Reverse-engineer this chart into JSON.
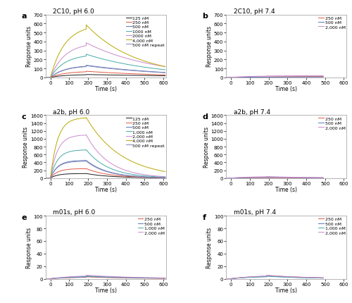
{
  "panels": [
    {
      "label": "a",
      "title": "2C10, pH 6.0",
      "ylim": [
        0,
        700
      ],
      "yticks": [
        0,
        100,
        200,
        300,
        400,
        500,
        600,
        700
      ],
      "xlim": [
        -25,
        615
      ],
      "xticks": [
        0,
        100,
        200,
        300,
        400,
        500,
        600
      ],
      "assoc_start": 0,
      "assoc_end": 190,
      "dissoc_end": 610,
      "k_on": 2.5,
      "series": [
        {
          "label": "125 nM",
          "color": "#1a1a1a",
          "peak": 32,
          "end": 18
        },
        {
          "label": "250 nM",
          "color": "#e05840",
          "peak": 68,
          "end": 28
        },
        {
          "label": "500 nM",
          "color": "#5577bb",
          "peak": 135,
          "end": 55
        },
        {
          "label": "1000 nM",
          "color": "#44aaa8",
          "peak": 258,
          "end": 85
        },
        {
          "label": "2000 nM",
          "color": "#cc88cc",
          "peak": 385,
          "end": 120
        },
        {
          "label": "4,000 nM",
          "color": "#b8a800",
          "peak": 585,
          "end": 120
        },
        {
          "label": "500 nM repeat",
          "color": "#8888bb",
          "peak": 130,
          "end": 52
        }
      ]
    },
    {
      "label": "b",
      "title": "2C10, pH 7.4",
      "ylim": [
        0,
        700
      ],
      "yticks": [
        0,
        100,
        200,
        300,
        400,
        500,
        600,
        700
      ],
      "xlim": [
        -25,
        615
      ],
      "xticks": [
        0,
        100,
        200,
        300,
        400,
        500,
        600
      ],
      "assoc_start": 0,
      "assoc_end": 190,
      "dissoc_end": 490,
      "k_on": 2.0,
      "series": [
        {
          "label": "250 nM",
          "color": "#e05840",
          "peak": 6,
          "end": 10
        },
        {
          "label": "500 nM",
          "color": "#5577bb",
          "peak": 4,
          "end": 5
        },
        {
          "label": "2,000 nM",
          "color": "#cc88cc",
          "peak": 16,
          "end": 20
        }
      ]
    },
    {
      "label": "c",
      "title": "a2b, pH 6.0",
      "ylim": [
        0,
        1600
      ],
      "yticks": [
        0,
        200,
        400,
        600,
        800,
        1000,
        1200,
        1400,
        1600
      ],
      "xlim": [
        -25,
        615
      ],
      "xticks": [
        0,
        100,
        200,
        300,
        400,
        500,
        600
      ],
      "assoc_start": 0,
      "assoc_end": 190,
      "dissoc_end": 610,
      "k_on": 5.0,
      "series": [
        {
          "label": "125 nM",
          "color": "#1a1a1a",
          "peak": 115,
          "end": 5
        },
        {
          "label": "250 nM",
          "color": "#e05840",
          "peak": 240,
          "end": 8
        },
        {
          "label": "500 nM",
          "color": "#5577bb",
          "peak": 450,
          "end": 12
        },
        {
          "label": "1,000 nM",
          "color": "#44aaa8",
          "peak": 720,
          "end": 22
        },
        {
          "label": "2,000 nM",
          "color": "#cc88cc",
          "peak": 1100,
          "end": 35
        },
        {
          "label": "4,000 nM",
          "color": "#b8a800",
          "peak": 1540,
          "end": 165
        },
        {
          "label": "500 nM repeat",
          "color": "#8888bb",
          "peak": 430,
          "end": 10
        }
      ]
    },
    {
      "label": "d",
      "title": "a2b, pH 7.4",
      "ylim": [
        0,
        1600
      ],
      "yticks": [
        0,
        200,
        400,
        600,
        800,
        1000,
        1200,
        1400,
        1600
      ],
      "xlim": [
        -25,
        615
      ],
      "xticks": [
        0,
        100,
        200,
        300,
        400,
        500,
        600
      ],
      "assoc_start": 0,
      "assoc_end": 190,
      "dissoc_end": 490,
      "k_on": 2.0,
      "series": [
        {
          "label": "250 nM",
          "color": "#e05840",
          "peak": 10,
          "end": 5
        },
        {
          "label": "500 nM",
          "color": "#5577bb",
          "peak": 18,
          "end": 7
        },
        {
          "label": "2,000 nM",
          "color": "#cc88cc",
          "peak": 38,
          "end": 10
        }
      ]
    },
    {
      "label": "e",
      "title": "m01s, pH 6.0",
      "ylim": [
        0,
        100
      ],
      "yticks": [
        0,
        20,
        40,
        60,
        80,
        100
      ],
      "xlim": [
        -25,
        615
      ],
      "xticks": [
        0,
        100,
        200,
        300,
        400,
        500,
        600
      ],
      "assoc_start": 0,
      "assoc_end": 190,
      "dissoc_end": 610,
      "k_on": 1.5,
      "series": [
        {
          "label": "250 nM",
          "color": "#e05840",
          "peak": 3.0,
          "end": 0.5
        },
        {
          "label": "500 nM",
          "color": "#5577bb",
          "peak": 3.5,
          "end": 0.8
        },
        {
          "label": "1,000 nM",
          "color": "#44aaa8",
          "peak": 4.5,
          "end": 1.0
        },
        {
          "label": "2,000 nM",
          "color": "#cc88cc",
          "peak": 5.5,
          "end": 1.2
        }
      ]
    },
    {
      "label": "f",
      "title": "m01s, pH 7.4",
      "ylim": [
        0,
        100
      ],
      "yticks": [
        0,
        20,
        40,
        60,
        80,
        100
      ],
      "xlim": [
        -25,
        615
      ],
      "xticks": [
        0,
        100,
        200,
        300,
        400,
        500,
        600
      ],
      "assoc_start": 0,
      "assoc_end": 190,
      "dissoc_end": 490,
      "k_on": 1.5,
      "series": [
        {
          "label": "250 nM",
          "color": "#e05840",
          "peak": 5.0,
          "end": 1.5
        },
        {
          "label": "500 nM",
          "color": "#5577bb",
          "peak": 4.0,
          "end": 1.0
        },
        {
          "label": "1,000 nM",
          "color": "#44aaa8",
          "peak": 4.5,
          "end": 1.0
        },
        {
          "label": "2,000 nM",
          "color": "#cc88cc",
          "peak": 5.5,
          "end": 1.5
        }
      ]
    }
  ],
  "xlabel": "Time (s)",
  "ylabel": "Response units",
  "bg_color": "#ffffff",
  "panel_bg": "#ffffff"
}
